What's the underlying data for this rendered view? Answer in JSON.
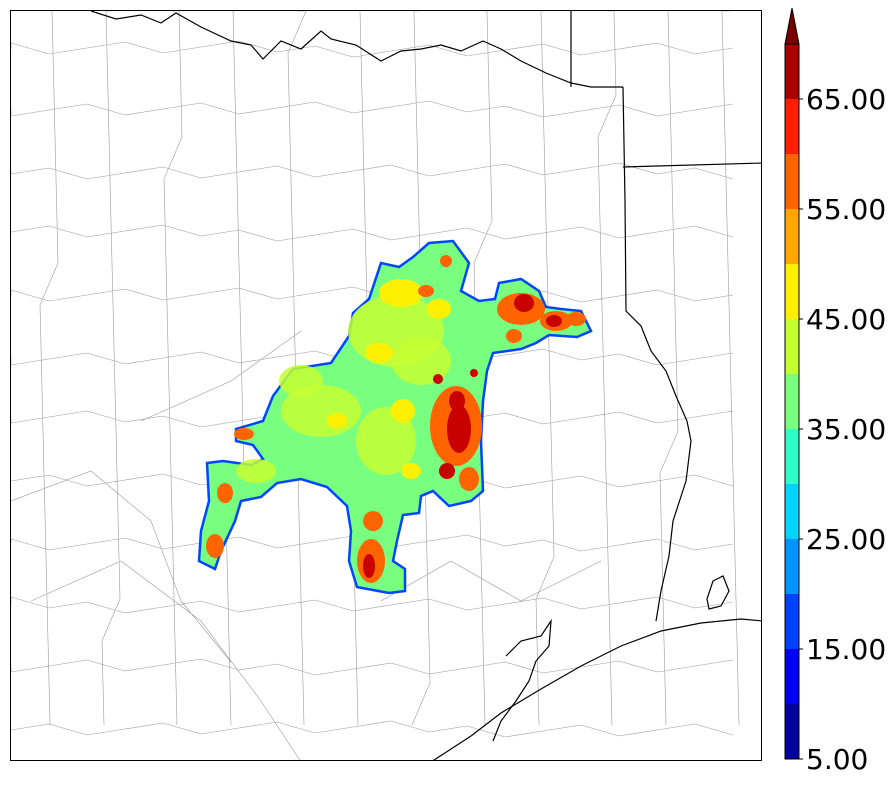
{
  "colorbar": {
    "tick_labels": [
      "5.00",
      "15.00",
      "25.00",
      "35.00",
      "45.00",
      "55.00",
      "65.00"
    ],
    "levels": [
      5,
      10,
      15,
      20,
      25,
      30,
      35,
      40,
      45,
      50,
      55,
      60,
      65,
      70
    ],
    "colors": [
      "#00009e",
      "#0000f5",
      "#0042ff",
      "#0094ff",
      "#00d4ff",
      "#2effc8",
      "#78ff7f",
      "#c4ff32",
      "#ffef00",
      "#ffa600",
      "#ff6400",
      "#ff1e00",
      "#a80000"
    ],
    "extend_color": "#7a0000",
    "extend": "max"
  },
  "map": {
    "field_colors": {
      "edge": "#0046ff",
      "low": "#78ff7f",
      "mid": "#c4ff32",
      "high": "#ffef00",
      "heavy": "#ff6400",
      "extreme": "#c80000"
    },
    "boundary_color": "#000000",
    "county_color": "#9a9a9a"
  }
}
